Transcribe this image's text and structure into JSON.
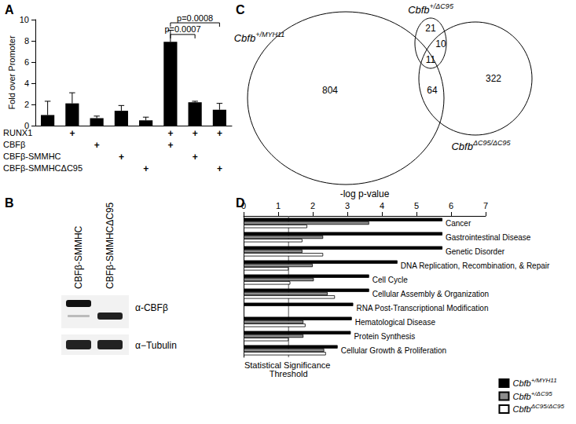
{
  "chart_data": [
    {
      "title": "A",
      "type": "bar",
      "categories": [
        null,
        null,
        null,
        null,
        null,
        null,
        null,
        null
      ],
      "values": [
        1.0,
        2.1,
        0.7,
        1.4,
        0.5,
        7.9,
        2.2,
        1.5
      ],
      "errors": [
        1.3,
        1.0,
        0.2,
        0.5,
        0.3,
        1.1,
        0.1,
        0.6
      ],
      "color": "#000000",
      "ylabel": "Fold over Promoter",
      "ylim": [
        0,
        10
      ],
      "yticks": [
        0,
        2,
        4,
        6,
        8,
        10
      ],
      "grid": false,
      "conditions": [
        {
          "name": "RUNX1",
          "marks": [
            null,
            "+",
            null,
            null,
            null,
            "+",
            "+",
            "+"
          ]
        },
        {
          "name": "CBFβ",
          "marks": [
            null,
            null,
            "+",
            null,
            null,
            "+",
            null,
            null
          ]
        },
        {
          "name": "CBFβ-SMMHC",
          "marks": [
            null,
            null,
            null,
            "+",
            null,
            null,
            "+",
            null
          ]
        },
        {
          "name": "CBFβ-SMMHCΔC95",
          "marks": [
            null,
            null,
            null,
            null,
            "+",
            null,
            null,
            "+"
          ]
        }
      ],
      "annotations": [
        {
          "text": "p=0.0008",
          "from": 5,
          "to": 7,
          "y": 9.7
        },
        {
          "text": "p=0.0007",
          "from": 5,
          "to": 6,
          "y": 8.6
        }
      ]
    },
    {
      "title": "D",
      "type": "bar",
      "orientation": "horizontal",
      "categories": [
        "Cancer",
        "Gastrointestinal Disease",
        "Genetic Disorder",
        "DNA Replication, Recombination, & Repair",
        "Cell Cycle",
        "Cellular Assembly & Organization",
        "RNA Post-Transcriptional Modification",
        "Hematological Disease",
        "Protein Synthesis",
        "Cellular Growth & Proliferation"
      ],
      "series": [
        {
          "name": "Cbfb+/MYH11",
          "color": "#000000",
          "values": [
            5.75,
            5.75,
            5.75,
            4.45,
            3.63,
            3.63,
            3.17,
            3.13,
            3.1,
            2.72
          ]
        },
        {
          "name": "Cbfb+/ΔC95",
          "color": "#8c8c8c",
          "values": [
            3.63,
            2.3,
            1.7,
            2.0,
            2.03,
            2.43,
            null,
            1.73,
            1.73,
            2.33
          ]
        },
        {
          "name": "CbfbΔC95/ΔC95",
          "color": "#ffffff",
          "values": [
            1.84,
            1.7,
            2.3,
            1.3,
            1.35,
            2.64,
            null,
            1.79,
            1.3,
            2.38
          ]
        }
      ],
      "xlabel": "-log p-value",
      "xlim": [
        0,
        7
      ],
      "xticks": [
        0,
        1,
        2,
        3,
        4,
        5,
        6,
        7
      ],
      "grid": false,
      "legend": "bottom-right",
      "threshold": {
        "value": 1.3,
        "label": "Statistical Significance Threshold"
      }
    }
  ],
  "blot": {
    "title": "B",
    "lanes": [
      "CBFβ-SMMHC",
      "CBFβ-SMMHCΔC95"
    ],
    "antibodies": [
      "α-CBFβ",
      "α−Tubulin"
    ]
  },
  "venn": {
    "title": "C",
    "sets": [
      "Cbfb+/MYH11",
      "Cbfb+/ΔC95",
      "CbfbΔC95/ΔC95"
    ],
    "regions": [
      {
        "sets": [
          0
        ],
        "value": 804
      },
      {
        "sets": [
          1
        ],
        "value": 21
      },
      {
        "sets": [
          1,
          2
        ],
        "value": 10
      },
      {
        "sets": [
          0,
          1,
          2
        ],
        "value": 11
      },
      {
        "sets": [
          0,
          2
        ],
        "value": 64
      },
      {
        "sets": [
          2
        ],
        "value": 322
      }
    ]
  }
}
